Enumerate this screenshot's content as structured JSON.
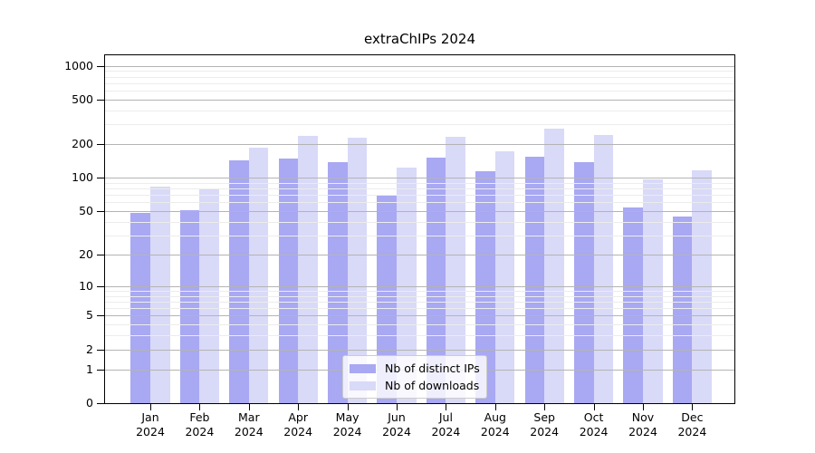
{
  "title": "extraChIPs 2024",
  "chart_data": {
    "type": "bar",
    "title": "extraChIPs 2024",
    "categories": [
      "Jan",
      "Feb",
      "Mar",
      "Apr",
      "May",
      "Jun",
      "Jul",
      "Aug",
      "Sep",
      "Oct",
      "Nov",
      "Dec"
    ],
    "year_label": "2024",
    "series": [
      {
        "name": "Nb of distinct IPs",
        "color": "#a8a8f3",
        "values": [
          48,
          51,
          144,
          150,
          137,
          70,
          151,
          114,
          154,
          137,
          54,
          45
        ]
      },
      {
        "name": "Nb of downloads",
        "color": "#d9d9f8",
        "values": [
          83,
          80,
          185,
          237,
          229,
          124,
          233,
          174,
          277,
          240,
          96,
          117
        ]
      }
    ],
    "y_axis": {
      "scale": "log1p",
      "ticks": [
        0,
        1,
        2,
        5,
        10,
        20,
        50,
        100,
        200,
        500,
        1000
      ],
      "minor_gridlines": [
        3,
        4,
        6,
        7,
        8,
        9,
        30,
        40,
        60,
        70,
        80,
        90,
        300,
        400,
        600,
        700,
        800,
        900
      ],
      "ylim": [
        0,
        1000
      ]
    },
    "grid": "on",
    "legend_position": "bottom-center"
  },
  "legend": {
    "items": [
      {
        "label": "Nb of distinct IPs"
      },
      {
        "label": "Nb of downloads"
      }
    ]
  },
  "colors": {
    "bar_distinct_ips": "#a8a8f3",
    "bar_downloads": "#d9d9f8",
    "grid_major": "#b4b4b4",
    "grid_minor": "#ececec",
    "spine": "#000000",
    "legend_border": "#cccccc"
  }
}
